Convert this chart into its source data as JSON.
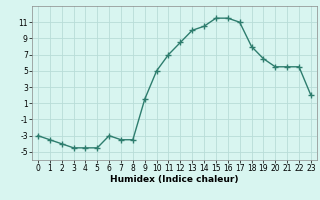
{
  "x": [
    0,
    1,
    2,
    3,
    4,
    5,
    6,
    7,
    8,
    9,
    10,
    11,
    12,
    13,
    14,
    15,
    16,
    17,
    18,
    19,
    20,
    21,
    22,
    23
  ],
  "y": [
    -3,
    -3.5,
    -4,
    -4.5,
    -4.5,
    -4.5,
    -3,
    -3.5,
    -3.5,
    1.5,
    5,
    7,
    8.5,
    10,
    10.5,
    11.5,
    11.5,
    11,
    8,
    6.5,
    5.5,
    5.5,
    5.5,
    2
  ],
  "line_color": "#2e7d6e",
  "marker": "+",
  "marker_size": 4,
  "marker_edge_width": 1.0,
  "bg_color": "#d8f5f0",
  "grid_color": "#b8ddd8",
  "grid_color_minor": "#cceae5",
  "xlabel": "Humidex (Indice chaleur)",
  "xlim": [
    -0.5,
    23.5
  ],
  "ylim": [
    -6,
    13
  ],
  "yticks": [
    -5,
    -3,
    -1,
    1,
    3,
    5,
    7,
    9,
    11
  ],
  "xticks": [
    0,
    1,
    2,
    3,
    4,
    5,
    6,
    7,
    8,
    9,
    10,
    11,
    12,
    13,
    14,
    15,
    16,
    17,
    18,
    19,
    20,
    21,
    22,
    23
  ],
  "xlabel_fontsize": 6.5,
  "tick_fontsize": 5.5,
  "line_width": 1.0
}
